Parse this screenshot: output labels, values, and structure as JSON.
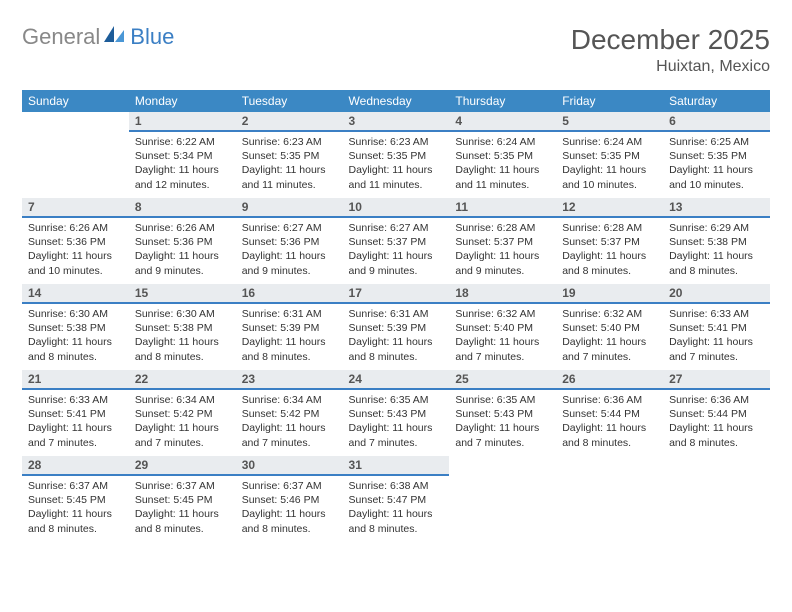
{
  "brand": {
    "text_general": "General",
    "text_blue": "Blue",
    "sail_color_dark": "#1d5c99",
    "sail_color_light": "#4a97d6"
  },
  "header": {
    "month_title": "December 2025",
    "location": "Huixtan, Mexico"
  },
  "calendar": {
    "type": "table",
    "header_bg": "#3b88c4",
    "header_fg": "#ffffff",
    "daynum_bg": "#e9ecef",
    "daynum_border": "#3b7fc4",
    "columns": [
      "Sunday",
      "Monday",
      "Tuesday",
      "Wednesday",
      "Thursday",
      "Friday",
      "Saturday"
    ],
    "weeks": [
      [
        null,
        {
          "n": "1",
          "sr": "Sunrise: 6:22 AM",
          "ss": "Sunset: 5:34 PM",
          "dl": "Daylight: 11 hours and 12 minutes."
        },
        {
          "n": "2",
          "sr": "Sunrise: 6:23 AM",
          "ss": "Sunset: 5:35 PM",
          "dl": "Daylight: 11 hours and 11 minutes."
        },
        {
          "n": "3",
          "sr": "Sunrise: 6:23 AM",
          "ss": "Sunset: 5:35 PM",
          "dl": "Daylight: 11 hours and 11 minutes."
        },
        {
          "n": "4",
          "sr": "Sunrise: 6:24 AM",
          "ss": "Sunset: 5:35 PM",
          "dl": "Daylight: 11 hours and 11 minutes."
        },
        {
          "n": "5",
          "sr": "Sunrise: 6:24 AM",
          "ss": "Sunset: 5:35 PM",
          "dl": "Daylight: 11 hours and 10 minutes."
        },
        {
          "n": "6",
          "sr": "Sunrise: 6:25 AM",
          "ss": "Sunset: 5:35 PM",
          "dl": "Daylight: 11 hours and 10 minutes."
        }
      ],
      [
        {
          "n": "7",
          "sr": "Sunrise: 6:26 AM",
          "ss": "Sunset: 5:36 PM",
          "dl": "Daylight: 11 hours and 10 minutes."
        },
        {
          "n": "8",
          "sr": "Sunrise: 6:26 AM",
          "ss": "Sunset: 5:36 PM",
          "dl": "Daylight: 11 hours and 9 minutes."
        },
        {
          "n": "9",
          "sr": "Sunrise: 6:27 AM",
          "ss": "Sunset: 5:36 PM",
          "dl": "Daylight: 11 hours and 9 minutes."
        },
        {
          "n": "10",
          "sr": "Sunrise: 6:27 AM",
          "ss": "Sunset: 5:37 PM",
          "dl": "Daylight: 11 hours and 9 minutes."
        },
        {
          "n": "11",
          "sr": "Sunrise: 6:28 AM",
          "ss": "Sunset: 5:37 PM",
          "dl": "Daylight: 11 hours and 9 minutes."
        },
        {
          "n": "12",
          "sr": "Sunrise: 6:28 AM",
          "ss": "Sunset: 5:37 PM",
          "dl": "Daylight: 11 hours and 8 minutes."
        },
        {
          "n": "13",
          "sr": "Sunrise: 6:29 AM",
          "ss": "Sunset: 5:38 PM",
          "dl": "Daylight: 11 hours and 8 minutes."
        }
      ],
      [
        {
          "n": "14",
          "sr": "Sunrise: 6:30 AM",
          "ss": "Sunset: 5:38 PM",
          "dl": "Daylight: 11 hours and 8 minutes."
        },
        {
          "n": "15",
          "sr": "Sunrise: 6:30 AM",
          "ss": "Sunset: 5:38 PM",
          "dl": "Daylight: 11 hours and 8 minutes."
        },
        {
          "n": "16",
          "sr": "Sunrise: 6:31 AM",
          "ss": "Sunset: 5:39 PM",
          "dl": "Daylight: 11 hours and 8 minutes."
        },
        {
          "n": "17",
          "sr": "Sunrise: 6:31 AM",
          "ss": "Sunset: 5:39 PM",
          "dl": "Daylight: 11 hours and 8 minutes."
        },
        {
          "n": "18",
          "sr": "Sunrise: 6:32 AM",
          "ss": "Sunset: 5:40 PM",
          "dl": "Daylight: 11 hours and 7 minutes."
        },
        {
          "n": "19",
          "sr": "Sunrise: 6:32 AM",
          "ss": "Sunset: 5:40 PM",
          "dl": "Daylight: 11 hours and 7 minutes."
        },
        {
          "n": "20",
          "sr": "Sunrise: 6:33 AM",
          "ss": "Sunset: 5:41 PM",
          "dl": "Daylight: 11 hours and 7 minutes."
        }
      ],
      [
        {
          "n": "21",
          "sr": "Sunrise: 6:33 AM",
          "ss": "Sunset: 5:41 PM",
          "dl": "Daylight: 11 hours and 7 minutes."
        },
        {
          "n": "22",
          "sr": "Sunrise: 6:34 AM",
          "ss": "Sunset: 5:42 PM",
          "dl": "Daylight: 11 hours and 7 minutes."
        },
        {
          "n": "23",
          "sr": "Sunrise: 6:34 AM",
          "ss": "Sunset: 5:42 PM",
          "dl": "Daylight: 11 hours and 7 minutes."
        },
        {
          "n": "24",
          "sr": "Sunrise: 6:35 AM",
          "ss": "Sunset: 5:43 PM",
          "dl": "Daylight: 11 hours and 7 minutes."
        },
        {
          "n": "25",
          "sr": "Sunrise: 6:35 AM",
          "ss": "Sunset: 5:43 PM",
          "dl": "Daylight: 11 hours and 7 minutes."
        },
        {
          "n": "26",
          "sr": "Sunrise: 6:36 AM",
          "ss": "Sunset: 5:44 PM",
          "dl": "Daylight: 11 hours and 8 minutes."
        },
        {
          "n": "27",
          "sr": "Sunrise: 6:36 AM",
          "ss": "Sunset: 5:44 PM",
          "dl": "Daylight: 11 hours and 8 minutes."
        }
      ],
      [
        {
          "n": "28",
          "sr": "Sunrise: 6:37 AM",
          "ss": "Sunset: 5:45 PM",
          "dl": "Daylight: 11 hours and 8 minutes."
        },
        {
          "n": "29",
          "sr": "Sunrise: 6:37 AM",
          "ss": "Sunset: 5:45 PM",
          "dl": "Daylight: 11 hours and 8 minutes."
        },
        {
          "n": "30",
          "sr": "Sunrise: 6:37 AM",
          "ss": "Sunset: 5:46 PM",
          "dl": "Daylight: 11 hours and 8 minutes."
        },
        {
          "n": "31",
          "sr": "Sunrise: 6:38 AM",
          "ss": "Sunset: 5:47 PM",
          "dl": "Daylight: 11 hours and 8 minutes."
        },
        null,
        null,
        null
      ]
    ]
  }
}
